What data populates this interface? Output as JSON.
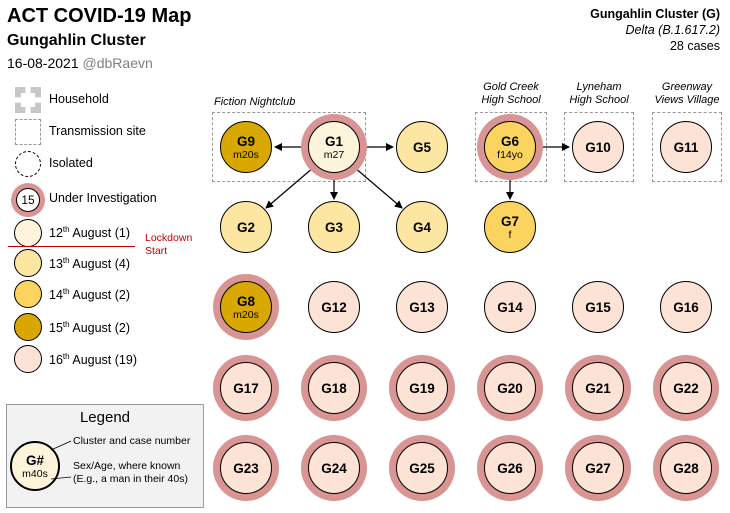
{
  "header": {
    "title": "ACT COVID-19 Map",
    "subtitle": "Gungahlin Cluster",
    "date": "16-08-2021",
    "handle": "@dbRaevn"
  },
  "cluster_info": {
    "name": "Gungahlin Cluster (G)",
    "variant": "Delta (B.1.617.2)",
    "count": "28 cases"
  },
  "colors": {
    "aug12": "#fef4dc",
    "aug13": "#fde6a2",
    "aug14": "#fbd45f",
    "aug15": "#d8a800",
    "aug16": "#fce3d6",
    "investigation_ring": "#d99594",
    "lockdown": "#c00000"
  },
  "legend_items": {
    "household": "Household",
    "transmission_site": "Transmission site",
    "isolated": "Isolated",
    "under_investigation": "Under Investigation",
    "under_investigation_num": "15",
    "aug12": {
      "day": "12",
      "sup": "th",
      "rest": " August (1)"
    },
    "aug13": {
      "day": "13",
      "sup": "th",
      "rest": " August (4)"
    },
    "aug14": {
      "day": "14",
      "sup": "th",
      "rest": " August (2)"
    },
    "aug15": {
      "day": "15",
      "sup": "th",
      "rest": " August (2)"
    },
    "aug16": {
      "day": "16",
      "sup": "th",
      "rest": " August (19)"
    },
    "lockdown_line1": "Lockdown",
    "lockdown_line2": "Start"
  },
  "sites": {
    "fiction": "Fiction Nightclub",
    "goldcreek_1": "Gold Creek",
    "goldcreek_2": "High School",
    "lyneham_1": "Lyneham",
    "lyneham_2": "High School",
    "greenway_1": "Greenway",
    "greenway_2": "Views Village"
  },
  "cases": {
    "G1": {
      "id": "G1",
      "info": "m27"
    },
    "G2": {
      "id": "G2"
    },
    "G3": {
      "id": "G3"
    },
    "G4": {
      "id": "G4"
    },
    "G5": {
      "id": "G5"
    },
    "G6": {
      "id": "G6",
      "info": "f14yo"
    },
    "G7": {
      "id": "G7",
      "info": "f"
    },
    "G8": {
      "id": "G8",
      "info": "m20s"
    },
    "G9": {
      "id": "G9",
      "info": "m20s"
    },
    "G10": {
      "id": "G10"
    },
    "G11": {
      "id": "G11"
    },
    "G12": {
      "id": "G12"
    },
    "G13": {
      "id": "G13"
    },
    "G14": {
      "id": "G14"
    },
    "G15": {
      "id": "G15"
    },
    "G16": {
      "id": "G16"
    },
    "G17": {
      "id": "G17"
    },
    "G18": {
      "id": "G18"
    },
    "G19": {
      "id": "G19"
    },
    "G20": {
      "id": "G20"
    },
    "G21": {
      "id": "G21"
    },
    "G22": {
      "id": "G22"
    },
    "G23": {
      "id": "G23"
    },
    "G24": {
      "id": "G24"
    },
    "G25": {
      "id": "G25"
    },
    "G26": {
      "id": "G26"
    },
    "G27": {
      "id": "G27"
    },
    "G28": {
      "id": "G28"
    }
  },
  "legend_box": {
    "title": "Legend",
    "example_id": "G#",
    "example_info": "m40s",
    "anno1": "Cluster and case number",
    "anno2_line1": "Sex/Age, where known",
    "anno2_line2": "(E.g., a man in their 40s)"
  }
}
